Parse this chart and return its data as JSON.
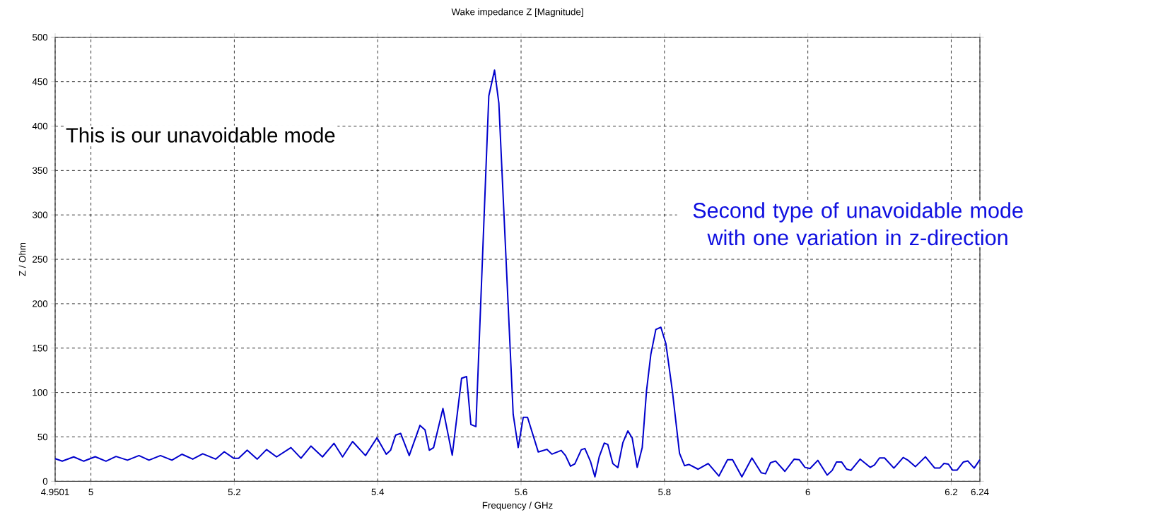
{
  "chart_data": {
    "type": "line",
    "title": "Wake impedance Z [Magnitude]",
    "xlabel": "Frequency / GHz",
    "ylabel": "Z / Ohm",
    "annotations": [
      "This is our unavoidable mode",
      "Second type of unavoidable mode with one variation in z-direction"
    ],
    "x": [
      4.9501,
      4.96,
      4.976,
      4.99,
      5.006,
      5.021,
      5.035,
      5.051,
      5.067,
      5.081,
      5.097,
      5.113,
      5.127,
      5.142,
      5.156,
      5.174,
      5.186,
      5.199,
      5.206,
      5.218,
      5.232,
      5.245,
      5.259,
      5.279,
      5.293,
      5.307,
      5.323,
      5.339,
      5.351,
      5.365,
      5.383,
      5.399,
      5.412,
      5.418,
      5.425,
      5.432,
      5.444,
      5.459,
      5.466,
      5.472,
      5.478,
      5.491,
      5.504,
      5.517,
      5.524,
      5.53,
      5.537,
      5.555,
      5.563,
      5.569,
      5.589,
      5.596,
      5.603,
      5.609,
      5.624,
      5.636,
      5.643,
      5.656,
      5.662,
      5.669,
      5.675,
      5.684,
      5.689,
      5.697,
      5.703,
      5.709,
      5.716,
      5.721,
      5.728,
      5.735,
      5.742,
      5.749,
      5.755,
      5.762,
      5.769,
      5.775,
      5.781,
      5.788,
      5.795,
      5.802,
      5.811,
      5.821,
      5.828,
      5.834,
      5.847,
      5.861,
      5.876,
      5.888,
      5.895,
      5.908,
      5.922,
      5.935,
      5.941,
      5.948,
      5.955,
      5.968,
      5.981,
      5.988,
      5.996,
      6.003,
      6.014,
      6.027,
      6.034,
      6.04,
      6.047,
      6.054,
      6.06,
      6.073,
      6.087,
      6.093,
      6.1,
      6.107,
      6.12,
      6.133,
      6.14,
      6.15,
      6.164,
      6.177,
      6.184,
      6.19,
      6.196,
      6.202,
      6.208,
      6.217,
      6.223,
      6.232,
      6.24
    ],
    "values": [
      25.5,
      22.7,
      27.5,
      22.7,
      27.7,
      22.7,
      28,
      23.8,
      29,
      23.8,
      29,
      23.8,
      30.5,
      25,
      31,
      25,
      33.3,
      26,
      26,
      35,
      25,
      35.8,
      27.5,
      38,
      26,
      39.7,
      27.5,
      42.8,
      27.5,
      44.8,
      29,
      49,
      30.5,
      35,
      52,
      54,
      29,
      63,
      58,
      35,
      38,
      82,
      29.4,
      116,
      118,
      64,
      61.6,
      434,
      463,
      426,
      75.5,
      38,
      72,
      72,
      33,
      36,
      30.6,
      34.8,
      29,
      17,
      19.7,
      35.6,
      37,
      22,
      5,
      27.6,
      43,
      41.5,
      20,
      15.4,
      43.5,
      56.8,
      48.8,
      15.7,
      38,
      102,
      143,
      171,
      173.5,
      155,
      102,
      31.6,
      17.6,
      19,
      13.6,
      20,
      6,
      24.4,
      24.4,
      5,
      26.3,
      9.6,
      8.5,
      21,
      22.8,
      11.2,
      25,
      24.4,
      15.7,
      14.4,
      23.6,
      7,
      12.3,
      21.8,
      21.8,
      13.8,
      12.3,
      25,
      15.7,
      18.4,
      26.3,
      26.3,
      14.9,
      26.8,
      23.6,
      16.5,
      27.6,
      14.9,
      14.9,
      20.2,
      19.4,
      12.5,
      12.5,
      21.8,
      23,
      14.9,
      24.4
    ],
    "color": "#0000cc",
    "xlim": [
      4.9501,
      6.24
    ],
    "ylim": [
      0,
      500
    ],
    "xticks": [
      4.9501,
      5,
      5.2,
      5.4,
      5.6,
      5.8,
      6,
      6.2,
      6.24
    ],
    "yticks": [
      0,
      50,
      100,
      150,
      200,
      250,
      300,
      350,
      400,
      450,
      500
    ],
    "grid": true
  }
}
